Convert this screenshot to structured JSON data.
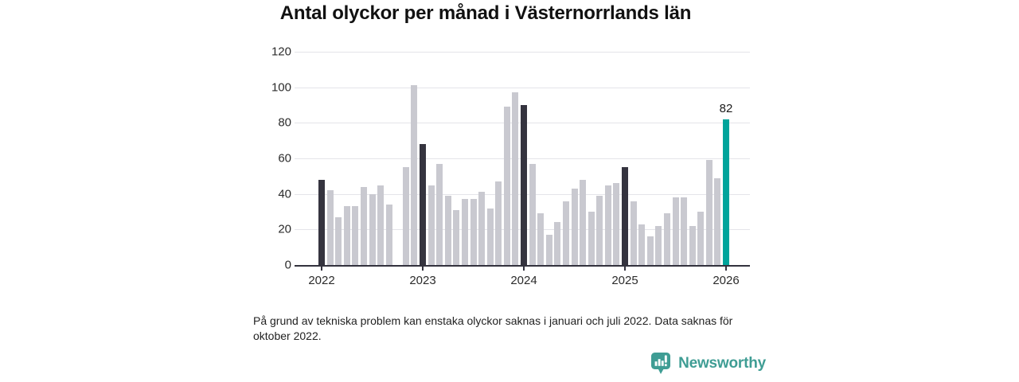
{
  "title": "Antal olyckor per månad i Västernorrlands län",
  "footnote": "På grund av tekniska problem kan enstaka olyckor saknas i januari och juli 2022. Data saknas för oktober 2022.",
  "footer": {
    "brand": "Newsworthy"
  },
  "colors": {
    "background": "#ffffff",
    "axis": "#33323d",
    "gridline": "#e4e4e9",
    "brand_teal": "#3f9d94"
  },
  "chart_data": {
    "type": "bar",
    "title": "Antal olyckor per månad i Västernorrlands län",
    "xlabel": "",
    "ylabel": "",
    "ylim": [
      0,
      120
    ],
    "yticks": [
      0,
      20,
      40,
      60,
      80,
      100,
      120
    ],
    "x_tick_labels": [
      "2022",
      "2023",
      "2024",
      "2025",
      "2026"
    ],
    "grid": "horizontal",
    "legend": "none",
    "note": "one bar per month, January bars dark, latest bar teal, October 2022 missing",
    "series": [
      {
        "year": "2022",
        "monthly_values": [
          48,
          42,
          27,
          33,
          33,
          44,
          40,
          45,
          34,
          null,
          55,
          101
        ]
      },
      {
        "year": "2023",
        "monthly_values": [
          68,
          45,
          57,
          39,
          31,
          37,
          37,
          41,
          32,
          47,
          89,
          97
        ]
      },
      {
        "year": "2024",
        "monthly_values": [
          90,
          57,
          29,
          17,
          24,
          36,
          43,
          48,
          30,
          39,
          45,
          46
        ]
      },
      {
        "year": "2025",
        "monthly_values": [
          55,
          36,
          23,
          16,
          22,
          29,
          38,
          38,
          22,
          30,
          59,
          49
        ]
      },
      {
        "year": "2026",
        "monthly_values": [
          82
        ]
      }
    ],
    "bar_colors": {
      "default": "#c9c9d0",
      "january": "#35343f",
      "latest": "#00a49b"
    },
    "annotation": {
      "x": "2026-01",
      "label": "82"
    }
  }
}
